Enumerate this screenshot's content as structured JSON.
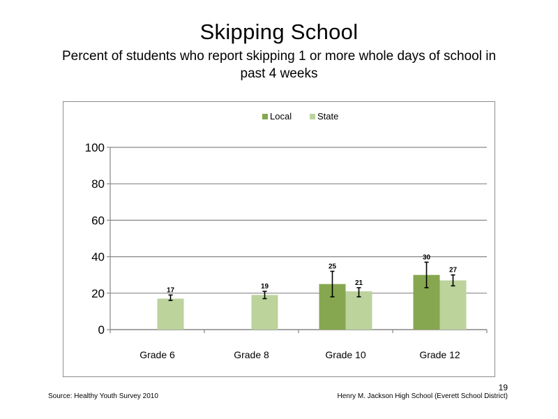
{
  "title": "Skipping School",
  "subtitle": "Percent of students who report skipping 1 or more whole days of school in past 4 weeks",
  "footer": {
    "source": "Source: Healthy Youth Survey 2010",
    "school": "Henry M. Jackson High School (Everett School District)",
    "page_number": "19"
  },
  "colors": {
    "local": "#86a74f",
    "state": "#bcd39c",
    "grid": "#868686",
    "axis": "#868686",
    "frame": "#8c8c8c"
  },
  "chart_data": {
    "type": "bar",
    "categories": [
      "Grade 6",
      "Grade 8",
      "Grade 10",
      "Grade 12"
    ],
    "series": [
      {
        "name": "Local",
        "values": [
          null,
          null,
          25,
          30
        ],
        "labels": [
          "",
          "",
          "25",
          "30"
        ],
        "error": [
          null,
          null,
          [
            18,
            32
          ],
          [
            23,
            37
          ]
        ]
      },
      {
        "name": "State",
        "values": [
          17,
          19,
          21,
          27
        ],
        "labels": [
          "17",
          "19",
          "21",
          "27"
        ],
        "error": [
          [
            16,
            19
          ],
          [
            17,
            21
          ],
          [
            18,
            23
          ],
          [
            24,
            30
          ]
        ]
      }
    ],
    "ylim": [
      0,
      100
    ],
    "yticks": [
      "0",
      "20",
      "40",
      "60",
      "80",
      "100"
    ],
    "grid": true,
    "legend": "top-center"
  }
}
